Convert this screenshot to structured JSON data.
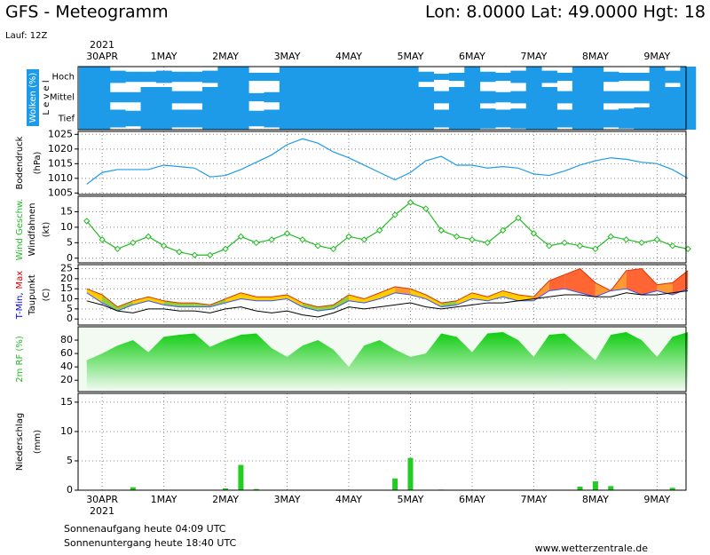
{
  "header": {
    "title": "GFS - Meteogramm",
    "location": "Lon: 8.0000 Lat: 49.0000 Hgt: 18",
    "run": "Lauf: 12Z"
  },
  "time_axis": {
    "year": "2021",
    "xlim": [
      -0.39,
      9.47
    ],
    "xticks": [
      {
        "value": 0,
        "label": "30APR"
      },
      {
        "value": 1,
        "label": "1MAY"
      },
      {
        "value": 2,
        "label": "2MAY"
      },
      {
        "value": 3,
        "label": "3MAY"
      },
      {
        "value": 4,
        "label": "4MAY"
      },
      {
        "value": 5,
        "label": "5MAY"
      },
      {
        "value": 6,
        "label": "6MAY"
      },
      {
        "value": 7,
        "label": "7MAY"
      },
      {
        "value": 8,
        "label": "8MAY"
      },
      {
        "value": 9,
        "label": "9MAY"
      }
    ],
    "x": [
      -0.25,
      0,
      0.25,
      0.5,
      0.75,
      1,
      1.25,
      1.5,
      1.75,
      2,
      2.25,
      2.5,
      2.75,
      3,
      3.25,
      3.5,
      3.75,
      4,
      4.25,
      4.5,
      4.75,
      5,
      5.25,
      5.5,
      5.75,
      6,
      6.25,
      6.5,
      6.75,
      7,
      7.25,
      7.5,
      7.75,
      8,
      8.25,
      8.5,
      8.75,
      9,
      9.25,
      9.5
    ]
  },
  "chart_data": [
    {
      "type": "cloud-levels",
      "ylabel": "Wolken (%)",
      "level_label": "L e v e l",
      "series": [
        {
          "name": "Hoch",
          "color": "#1e9be8",
          "values": [
            100,
            100,
            60,
            50,
            50,
            60,
            50,
            50,
            60,
            100,
            100,
            40,
            40,
            100,
            100,
            100,
            100,
            100,
            100,
            100,
            100,
            100,
            50,
            30,
            40,
            100,
            50,
            40,
            60,
            100,
            60,
            40,
            100,
            100,
            50,
            40,
            40,
            100,
            60,
            100
          ]
        },
        {
          "name": "Mittel",
          "color": "#1e9be8",
          "values": [
            100,
            100,
            50,
            50,
            100,
            100,
            60,
            60,
            100,
            100,
            100,
            40,
            50,
            100,
            100,
            100,
            100,
            100,
            100,
            100,
            100,
            100,
            100,
            60,
            100,
            100,
            60,
            50,
            60,
            100,
            100,
            60,
            100,
            100,
            60,
            60,
            60,
            100,
            100,
            100
          ]
        },
        {
          "name": "Tief",
          "color": "#1e9be8",
          "values": [
            100,
            100,
            80,
            70,
            100,
            100,
            80,
            80,
            100,
            100,
            100,
            70,
            80,
            100,
            100,
            100,
            100,
            100,
            100,
            100,
            100,
            100,
            100,
            80,
            100,
            100,
            90,
            80,
            90,
            100,
            100,
            80,
            100,
            100,
            80,
            90,
            100,
            100,
            100,
            100
          ]
        }
      ]
    },
    {
      "type": "line",
      "ylabel": "Bodendruck",
      "unit": "(hPa)",
      "color": "#1e9be8",
      "ylim": [
        1004.5,
        1026
      ],
      "yticks": [
        1005,
        1010,
        1015,
        1020,
        1025
      ],
      "values": [
        1008,
        1012,
        1013,
        1013,
        1013,
        1014.5,
        1014,
        1013.5,
        1010.5,
        1011,
        1013,
        1015.5,
        1018,
        1021.5,
        1023.5,
        1022,
        1019,
        1017,
        1014.5,
        1012,
        1009.5,
        1012,
        1016,
        1017.5,
        1014.5,
        1014.5,
        1013.5,
        1014,
        1013.5,
        1011.5,
        1011,
        1012.5,
        1014.5,
        1016,
        1017,
        1016.5,
        1015.5,
        1015,
        1013,
        1010
      ]
    },
    {
      "type": "line-markers",
      "ylabel": "Wind Geschw.",
      "ylabel_color": "#22bb22",
      "ylabel2": "Windfahnen",
      "unit": "(kt)",
      "color": "#22bb22",
      "ylim": [
        -1.5,
        20
      ],
      "yticks": [
        0,
        5,
        10,
        15
      ],
      "values": [
        12,
        6,
        3,
        5,
        7,
        4,
        2,
        1,
        1,
        3,
        7,
        5,
        6,
        8,
        6,
        4,
        3,
        7,
        6,
        9,
        14,
        18,
        16,
        9,
        7,
        6,
        5,
        9,
        13,
        8,
        4,
        5,
        4,
        3,
        7,
        6,
        5,
        6,
        4,
        3
      ]
    },
    {
      "type": "temperature",
      "ylabel": [
        {
          "text": "T-Min,",
          "color": "#0000dd"
        },
        {
          "text": "Max",
          "color": "#dd0000"
        }
      ],
      "ylabel2": "Taupunkt",
      "unit": "(C)",
      "ylim": [
        -3,
        27
      ],
      "yticks": [
        0,
        5,
        10,
        15,
        20,
        25
      ],
      "series": [
        {
          "color": "#3355ff",
          "values": [
            13,
            8,
            4,
            7,
            9,
            7,
            6,
            6,
            6,
            8,
            10,
            9,
            9,
            10,
            6,
            4,
            5,
            9,
            8,
            10,
            13,
            12,
            10,
            6,
            7,
            10,
            9,
            11,
            9,
            9,
            14,
            15,
            13,
            11,
            14,
            15,
            12,
            14,
            12,
            15
          ]
        },
        {
          "color": "#dd3300",
          "values": [
            15,
            12,
            6,
            9,
            11,
            9,
            8,
            8,
            7,
            10,
            13,
            11,
            11,
            12,
            8,
            6,
            7,
            12,
            10,
            13,
            16,
            15,
            12,
            8,
            9,
            13,
            11,
            14,
            12,
            11,
            19,
            22,
            25,
            18,
            14,
            24,
            25,
            17,
            18,
            24
          ]
        },
        {
          "color": "#000000",
          "values": [
            9,
            7,
            4,
            3,
            5,
            5,
            4,
            4,
            3,
            5,
            6,
            4,
            3,
            4,
            2,
            1,
            3,
            6,
            5,
            6,
            7,
            8,
            6,
            5,
            6,
            7,
            8,
            8,
            9,
            10,
            11,
            12,
            12,
            11,
            11,
            13,
            12,
            12,
            13,
            14
          ]
        }
      ]
    },
    {
      "type": "area",
      "ylabel": "2m RF (%)",
      "ylabel_color": "#22bb22",
      "color": "#11cc11",
      "ylim": [
        3,
        100
      ],
      "yticks": [
        20,
        40,
        60,
        80
      ],
      "values": [
        50,
        60,
        72,
        80,
        62,
        85,
        88,
        90,
        70,
        80,
        88,
        90,
        68,
        55,
        72,
        80,
        66,
        40,
        72,
        80,
        66,
        55,
        60,
        90,
        85,
        62,
        90,
        92,
        80,
        55,
        88,
        90,
        70,
        50,
        88,
        92,
        80,
        55,
        85,
        92
      ]
    },
    {
      "type": "bar",
      "ylabel": "Niederschlag",
      "unit": "(mm)",
      "color": "#22cc22",
      "ylim": [
        0,
        16.5
      ],
      "yticks": [
        0,
        5,
        10,
        15
      ],
      "values": [
        0,
        0,
        0,
        0.5,
        0,
        0,
        0,
        0,
        0,
        0.3,
        4.3,
        0.2,
        0,
        0,
        0,
        0,
        0,
        0,
        0,
        0,
        2,
        5.5,
        0,
        0.1,
        0,
        0,
        0,
        0,
        0,
        0,
        0,
        0,
        0.6,
        1.5,
        0.7,
        0,
        0,
        0,
        0.4,
        0
      ]
    }
  ],
  "footer": {
    "sunrise": "Sonnenaufgang heute 04:09 UTC",
    "sunset": "Sonnenuntergang heute 18:40 UTC",
    "source": "www.wetterzentrale.de"
  }
}
